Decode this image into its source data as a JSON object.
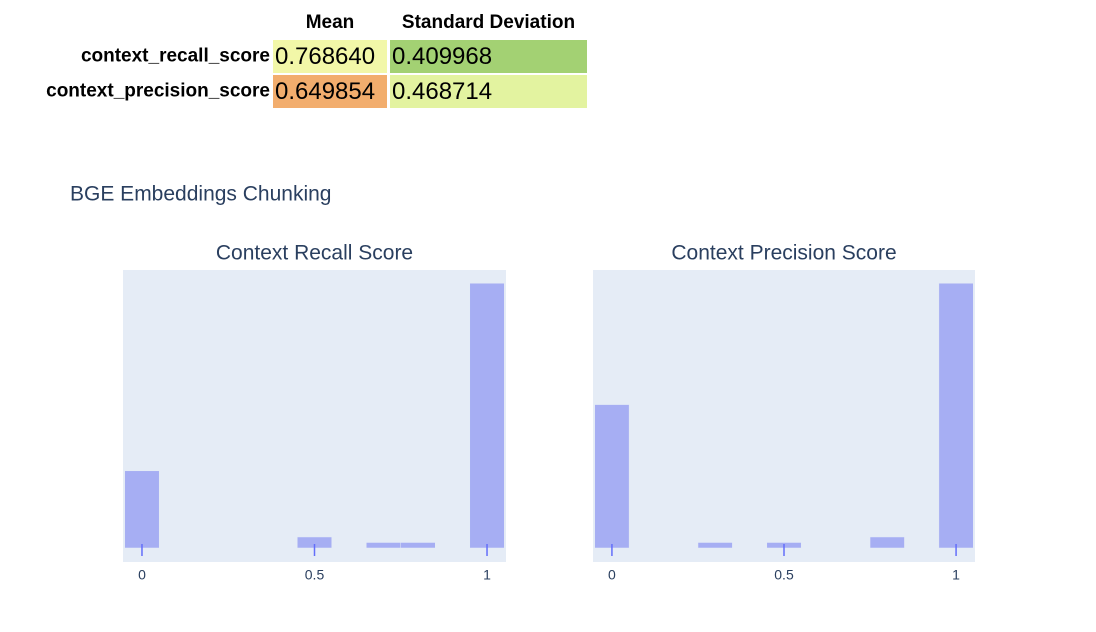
{
  "table": {
    "columns": [
      "Mean",
      "Standard Deviation"
    ],
    "rows": [
      {
        "label": "context_recall_score",
        "cells": [
          "0.768640",
          "0.409968"
        ],
        "colors": [
          "#f2f7a8",
          "#a3d173"
        ]
      },
      {
        "label": "context_precision_score",
        "cells": [
          "0.649854",
          "0.468714"
        ],
        "colors": [
          "#f2ad6d",
          "#e3f3a0"
        ]
      }
    ]
  },
  "figure": {
    "title": "BGE Embeddings Chunking"
  },
  "chart_data": [
    {
      "type": "histogram",
      "title": "Context Recall Score",
      "color": "#a6aef3",
      "background": "#e5ecf6",
      "bins": [
        -0.05,
        0.05,
        0.15,
        0.25,
        0.35,
        0.45,
        0.55,
        0.65,
        0.75,
        0.85,
        0.95,
        1.05
      ],
      "counts": [
        14,
        0,
        0,
        0,
        0,
        2,
        0,
        1,
        1,
        0,
        48
      ],
      "xlim": [
        -0.055,
        1.055
      ],
      "xticks": [
        0,
        0.5,
        1
      ],
      "ylim": [
        0,
        50.4
      ]
    },
    {
      "type": "histogram",
      "title": "Context Precision Score",
      "color": "#a6aef3",
      "background": "#e5ecf6",
      "bins": [
        -0.05,
        0.05,
        0.15,
        0.25,
        0.35,
        0.45,
        0.55,
        0.65,
        0.75,
        0.85,
        0.95,
        1.05
      ],
      "counts": [
        26,
        0,
        0,
        1,
        0,
        1,
        0,
        0,
        2,
        0,
        48
      ],
      "xlim": [
        -0.055,
        1.055
      ],
      "xticks": [
        0,
        0.5,
        1
      ],
      "ylim": [
        0,
        50.4
      ]
    }
  ]
}
